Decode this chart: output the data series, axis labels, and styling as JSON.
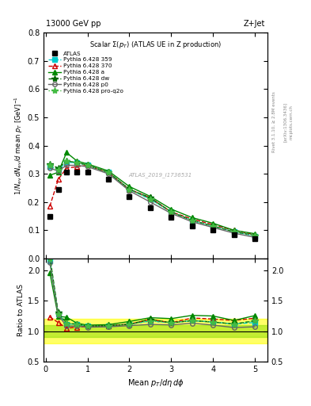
{
  "ATLAS": {
    "x": [
      0.1,
      0.3,
      0.5,
      0.75,
      1.0,
      1.5,
      2.0,
      2.5,
      3.0,
      3.5,
      4.0,
      4.5,
      5.0
    ],
    "y": [
      0.15,
      0.245,
      0.305,
      0.305,
      0.305,
      0.28,
      0.22,
      0.18,
      0.145,
      0.115,
      0.1,
      0.085,
      0.07
    ],
    "color": "black",
    "marker": "s",
    "label": "ATLAS"
  },
  "P359": {
    "x": [
      0.1,
      0.3,
      0.5,
      0.75,
      1.0,
      1.5,
      2.0,
      2.5,
      3.0,
      3.5,
      4.0,
      4.5,
      5.0
    ],
    "y": [
      0.325,
      0.315,
      0.34,
      0.34,
      0.33,
      0.305,
      0.245,
      0.21,
      0.165,
      0.135,
      0.115,
      0.095,
      0.08
    ],
    "color": "#00CCCC",
    "linestyle": "--",
    "marker": "s",
    "label": "Pythia 6.428 359"
  },
  "P370": {
    "x": [
      0.1,
      0.3,
      0.5,
      0.75,
      1.0,
      1.5,
      2.0,
      2.5,
      3.0,
      3.5,
      4.0,
      4.5,
      5.0
    ],
    "y": [
      0.185,
      0.28,
      0.32,
      0.325,
      0.33,
      0.305,
      0.245,
      0.215,
      0.165,
      0.14,
      0.12,
      0.1,
      0.085
    ],
    "color": "#CC0000",
    "linestyle": "--",
    "marker": "^",
    "markerface": "none",
    "label": "Pythia 6.428 370"
  },
  "Pa": {
    "x": [
      0.1,
      0.3,
      0.5,
      0.75,
      1.0,
      1.5,
      2.0,
      2.5,
      3.0,
      3.5,
      4.0,
      4.5,
      5.0
    ],
    "y": [
      0.295,
      0.305,
      0.375,
      0.345,
      0.335,
      0.31,
      0.255,
      0.22,
      0.175,
      0.145,
      0.125,
      0.1,
      0.088
    ],
    "color": "#008800",
    "linestyle": "-",
    "marker": "^",
    "label": "Pythia 6.428 a"
  },
  "Pdw": {
    "x": [
      0.1,
      0.3,
      0.5,
      0.75,
      1.0,
      1.5,
      2.0,
      2.5,
      3.0,
      3.5,
      4.0,
      4.5,
      5.0
    ],
    "y": [
      0.335,
      0.32,
      0.345,
      0.34,
      0.33,
      0.305,
      0.245,
      0.215,
      0.165,
      0.135,
      0.115,
      0.095,
      0.082
    ],
    "color": "#006600",
    "linestyle": "--",
    "marker": "*",
    "label": "Pythia 6.428 dw"
  },
  "Pp0": {
    "x": [
      0.1,
      0.3,
      0.5,
      0.75,
      1.0,
      1.5,
      2.0,
      2.5,
      3.0,
      3.5,
      4.0,
      4.5,
      5.0
    ],
    "y": [
      0.32,
      0.31,
      0.33,
      0.33,
      0.325,
      0.3,
      0.24,
      0.2,
      0.16,
      0.13,
      0.11,
      0.09,
      0.075
    ],
    "color": "#666666",
    "linestyle": "-",
    "marker": "o",
    "markerface": "none",
    "label": "Pythia 6.428 p0"
  },
  "Pproq2o": {
    "x": [
      0.1,
      0.3,
      0.5,
      0.75,
      1.0,
      1.5,
      2.0,
      2.5,
      3.0,
      3.5,
      4.0,
      4.5,
      5.0
    ],
    "y": [
      0.33,
      0.315,
      0.345,
      0.34,
      0.33,
      0.305,
      0.245,
      0.21,
      0.165,
      0.135,
      0.115,
      0.095,
      0.082
    ],
    "color": "#44BB44",
    "linestyle": ":",
    "marker": "*",
    "label": "Pythia 6.428 pro-q2o"
  },
  "ylim_main": [
    0.0,
    0.8
  ],
  "ylim_ratio": [
    0.5,
    2.2
  ],
  "xlim": [
    -0.05,
    5.3
  ],
  "yticks_main": [
    0.0,
    0.1,
    0.2,
    0.3,
    0.4,
    0.5,
    0.6,
    0.7,
    0.8
  ],
  "yticks_ratio": [
    0.5,
    1.0,
    1.5,
    2.0
  ],
  "xticks": [
    0,
    1,
    2,
    3,
    4,
    5
  ]
}
